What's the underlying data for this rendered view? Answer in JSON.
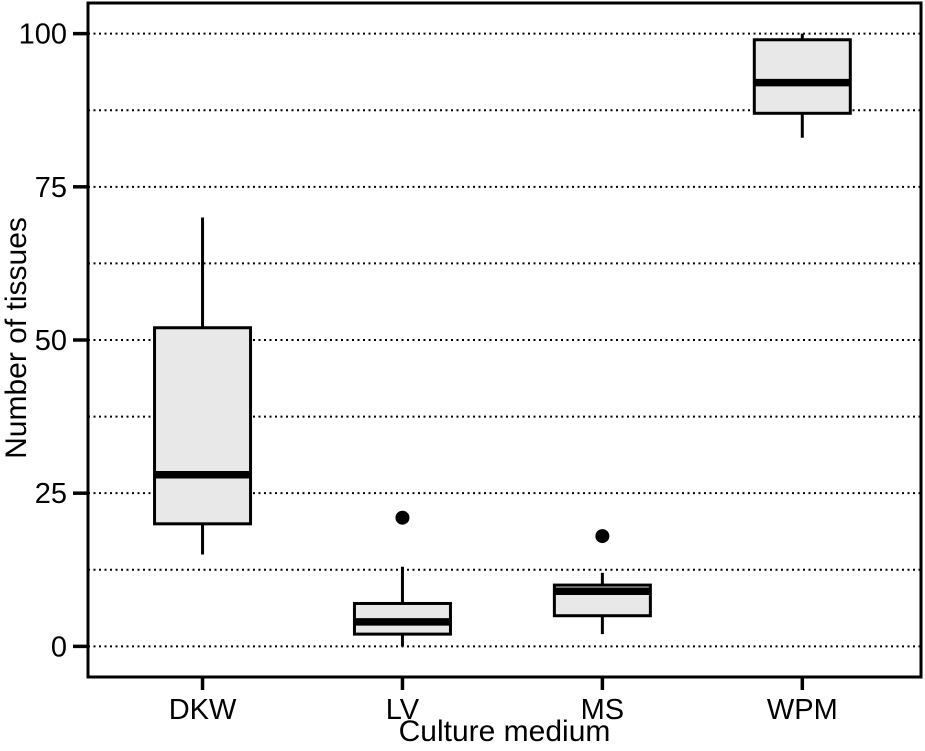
{
  "chart_data": {
    "type": "boxplot",
    "title": "",
    "xlabel": "Culture medium",
    "ylabel": "Number of tissues",
    "categories": [
      "DKW",
      "LV",
      "MS",
      "WPM"
    ],
    "ytick_labels": [
      "0",
      "25",
      "50",
      "75",
      "100"
    ],
    "ytick_values": [
      0,
      25,
      50,
      75,
      100
    ],
    "gridline_step": 12.5,
    "gridline_values": [
      0,
      12.5,
      25,
      37.5,
      50,
      62.5,
      75,
      87.5,
      100
    ],
    "ylim": [
      -5,
      105
    ],
    "grid": "dotted-horizontal",
    "legend": "none",
    "series": [
      {
        "name": "DKW",
        "whisker_low": 15,
        "q1": 20,
        "median": 28,
        "q3": 52,
        "whisker_high": 70,
        "outliers": []
      },
      {
        "name": "LV",
        "whisker_low": 0,
        "q1": 2,
        "median": 4,
        "q3": 7,
        "whisker_high": 13,
        "outliers": [
          21
        ]
      },
      {
        "name": "MS",
        "whisker_low": 2,
        "q1": 5,
        "median": 9,
        "q3": 10,
        "whisker_high": 12,
        "outliers": [
          18
        ]
      },
      {
        "name": "WPM",
        "whisker_low": 83,
        "q1": 87,
        "median": 92,
        "q3": 99,
        "whisker_high": 100,
        "outliers": []
      }
    ],
    "colors": {
      "box_fill": "#e8e8e8",
      "stroke": "#000000",
      "background": "#ffffff"
    }
  }
}
